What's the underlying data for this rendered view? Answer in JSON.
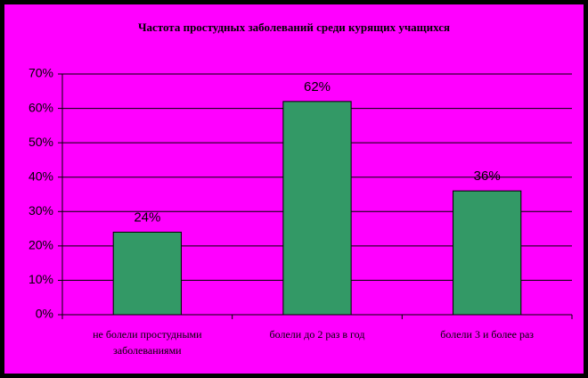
{
  "chart_data": {
    "type": "bar",
    "title": "Частота простудных заболеваний среди курящих учащихся",
    "categories": [
      "не болели простудными заболеваниями",
      "болели до 2 раз в год",
      "болели 3 и более раз"
    ],
    "values": [
      24,
      62,
      36
    ],
    "value_labels": [
      "24%",
      "62%",
      "36%"
    ],
    "color": "#339966",
    "ylim": [
      0,
      70
    ],
    "yticks": [
      {
        "value": 0,
        "label": "0%"
      },
      {
        "value": 10,
        "label": "10%"
      },
      {
        "value": 20,
        "label": "20%"
      },
      {
        "value": 30,
        "label": "30%"
      },
      {
        "value": 40,
        "label": "40%"
      },
      {
        "value": 50,
        "label": "50%"
      },
      {
        "value": 60,
        "label": "60%"
      },
      {
        "value": 70,
        "label": "70%"
      }
    ],
    "grid": true
  }
}
